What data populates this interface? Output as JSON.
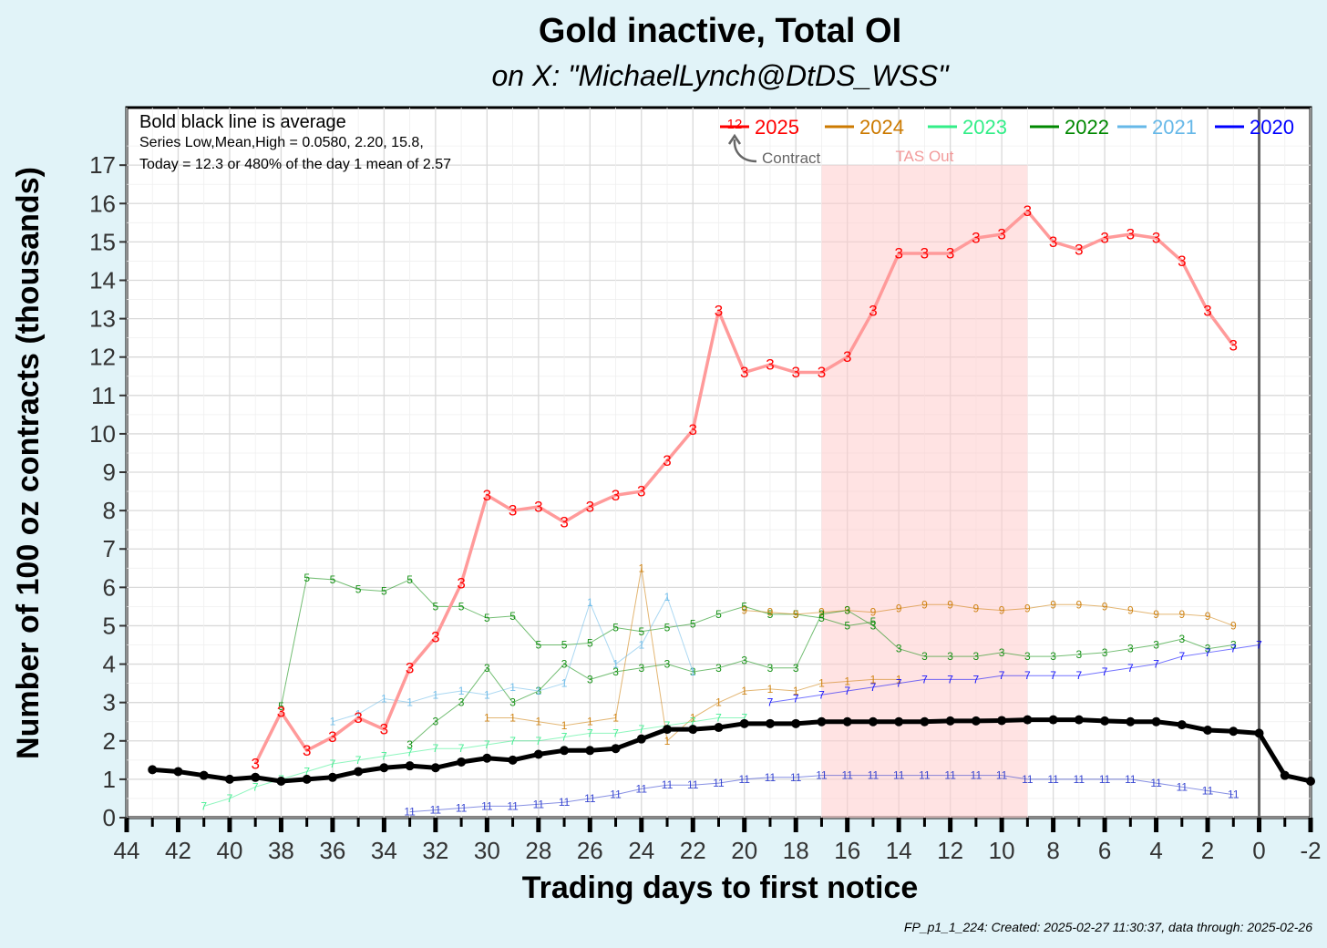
{
  "chart_data": {
    "type": "line",
    "title": "Gold inactive, Total OI",
    "subtitle": "on X:   \"MichaelLynch@DtDS_WSS\"",
    "xlabel": "Trading days to first notice",
    "ylabel": "Number of 100 oz contracts (thousands)",
    "xlim": [
      44,
      -2
    ],
    "ylim": [
      0,
      18.5
    ],
    "x_ticks": [
      44,
      42,
      40,
      38,
      36,
      34,
      32,
      30,
      28,
      26,
      24,
      22,
      20,
      18,
      16,
      14,
      12,
      10,
      8,
      6,
      4,
      2,
      0,
      -2
    ],
    "y_ticks": [
      0,
      1,
      2,
      3,
      4,
      5,
      6,
      7,
      8,
      9,
      10,
      11,
      12,
      13,
      14,
      15,
      16,
      17
    ],
    "grid": true,
    "legend_position": "top-right",
    "annotations": {
      "average_note": "Bold black line is average",
      "stats_note": "Series Low,Mean,High = 0.0580, 2.20, 15.8,",
      "today_note": "Today = 12.3 or 480% of the day 1 mean of 2.57",
      "contract_note": "Contract",
      "contract_sample_label": "12",
      "shaded_region_label": "TAS Out",
      "shaded_region": [
        17,
        9
      ],
      "vertical_line_at": 0
    },
    "legend": [
      {
        "name": "2025",
        "color": "#ff0000"
      },
      {
        "name": "2024",
        "color": "#cc7a00"
      },
      {
        "name": "2023",
        "color": "#33ee88"
      },
      {
        "name": "2022",
        "color": "#008800"
      },
      {
        "name": "2021",
        "color": "#66b8e8"
      },
      {
        "name": "2020",
        "color": "#0000ff"
      }
    ],
    "series": [
      {
        "name": "2025",
        "color": "#ff0000",
        "line_color": "#ff9a9a",
        "label": "3",
        "x": [
          39,
          38,
          37,
          36,
          35,
          34,
          33,
          32,
          31,
          30,
          29,
          28,
          27,
          26,
          25,
          24,
          23,
          22,
          21,
          20,
          19,
          18,
          17,
          16,
          15,
          14,
          13,
          12,
          11,
          10,
          9,
          8,
          7,
          6,
          5,
          4,
          3,
          2,
          1
        ],
        "values": [
          1.4,
          2.75,
          1.75,
          2.1,
          2.6,
          2.3,
          3.9,
          4.7,
          6.1,
          8.4,
          8.0,
          8.1,
          7.7,
          8.1,
          8.4,
          8.5,
          9.3,
          10.1,
          13.2,
          11.6,
          11.8,
          11.6,
          11.6,
          12.0,
          13.2,
          14.7,
          14.7,
          14.7,
          15.1,
          15.2,
          15.8,
          15.0,
          14.8,
          15.1,
          15.2,
          15.1,
          14.5,
          13.2,
          12.3
        ]
      },
      {
        "name": "average",
        "color": "#000000",
        "x": [
          43,
          42,
          41,
          40,
          39,
          38,
          37,
          36,
          35,
          34,
          33,
          32,
          31,
          30,
          29,
          28,
          27,
          26,
          25,
          24,
          23,
          22,
          21,
          20,
          19,
          18,
          17,
          16,
          15,
          14,
          13,
          12,
          11,
          10,
          9,
          8,
          7,
          6,
          5,
          4,
          3,
          2,
          1,
          0,
          -1,
          -2
        ],
        "values": [
          1.25,
          1.2,
          1.1,
          1.0,
          1.05,
          0.95,
          1.0,
          1.05,
          1.2,
          1.3,
          1.35,
          1.3,
          1.45,
          1.55,
          1.5,
          1.65,
          1.75,
          1.75,
          1.8,
          2.05,
          2.3,
          2.3,
          2.35,
          2.45,
          2.45,
          2.45,
          2.5,
          2.5,
          2.5,
          2.5,
          2.5,
          2.52,
          2.52,
          2.53,
          2.55,
          2.55,
          2.55,
          2.52,
          2.5,
          2.5,
          2.42,
          2.28,
          2.25,
          2.2,
          1.1,
          0.95
        ]
      },
      {
        "name": "5",
        "color": "#008800",
        "label": "5",
        "x": [
          38,
          37,
          36,
          35,
          34,
          33,
          32,
          31,
          30,
          29,
          28,
          27,
          26,
          25,
          24,
          23,
          22,
          21,
          20,
          19,
          18,
          17,
          16,
          15
        ],
        "values": [
          2.9,
          6.25,
          6.2,
          5.95,
          5.9,
          6.2,
          5.5,
          5.5,
          5.2,
          5.25,
          4.5,
          4.5,
          4.55,
          4.95,
          4.85,
          4.95,
          5.05,
          5.3,
          5.5,
          5.3,
          5.3,
          5.2,
          5.0,
          5.1
        ]
      },
      {
        "name": "9",
        "color": "#cc7a00",
        "label": "9",
        "x": [
          20,
          19,
          18,
          17,
          16,
          15,
          14,
          13,
          12,
          11,
          10,
          9,
          8,
          7,
          6,
          5,
          4,
          3,
          2,
          1
        ],
        "values": [
          5.4,
          5.35,
          5.3,
          5.35,
          5.4,
          5.35,
          5.45,
          5.55,
          5.55,
          5.45,
          5.4,
          5.45,
          5.55,
          5.55,
          5.5,
          5.4,
          5.3,
          5.3,
          5.25,
          5.0
        ]
      },
      {
        "name": "3",
        "color": "#008800",
        "label": "3",
        "x": [
          33,
          32,
          31,
          30,
          29,
          28,
          27,
          26,
          25,
          24,
          23,
          22,
          21,
          20,
          19,
          18,
          17,
          16,
          15,
          14,
          13,
          12,
          11,
          10,
          9,
          8,
          7,
          6,
          5,
          4,
          3,
          2,
          1
        ],
        "values": [
          1.9,
          2.5,
          3.0,
          3.9,
          3.0,
          3.3,
          4.0,
          3.6,
          3.8,
          3.9,
          4.0,
          3.8,
          3.9,
          4.1,
          3.9,
          3.9,
          5.3,
          5.4,
          5.0,
          4.4,
          4.2,
          4.2,
          4.2,
          4.3,
          4.2,
          4.2,
          4.25,
          4.3,
          4.4,
          4.5,
          4.65,
          4.4,
          4.5
        ]
      },
      {
        "name": "1",
        "color": "#cc7a00",
        "label": "1",
        "x": [
          30,
          29,
          28,
          27,
          26,
          25,
          24,
          23,
          22,
          21,
          20,
          19,
          18,
          17,
          16,
          15,
          14
        ],
        "values": [
          2.6,
          2.6,
          2.5,
          2.4,
          2.5,
          2.6,
          6.5,
          2.0,
          2.6,
          3.0,
          3.3,
          3.35,
          3.3,
          3.5,
          3.55,
          3.6,
          3.6
        ]
      },
      {
        "name": "7",
        "color": "#0000ff",
        "label": "7",
        "x": [
          19,
          18,
          17,
          16,
          15,
          14,
          13,
          12,
          11,
          10,
          9,
          8,
          7,
          6,
          5,
          4,
          3,
          2,
          1,
          0
        ],
        "values": [
          3.0,
          3.1,
          3.2,
          3.3,
          3.4,
          3.5,
          3.6,
          3.6,
          3.6,
          3.7,
          3.7,
          3.7,
          3.7,
          3.8,
          3.9,
          4.0,
          4.2,
          4.3,
          4.4,
          4.5
        ]
      },
      {
        "name": "11",
        "color": "#2233cc",
        "label": "11",
        "x": [
          33,
          32,
          31,
          30,
          29,
          28,
          27,
          26,
          25,
          24,
          23,
          22,
          21,
          20,
          19,
          18,
          17,
          16,
          15,
          14,
          13,
          12,
          11,
          10,
          9,
          8,
          7,
          6,
          5,
          4,
          3,
          2,
          1
        ],
        "values": [
          0.15,
          0.2,
          0.25,
          0.3,
          0.3,
          0.35,
          0.4,
          0.5,
          0.6,
          0.75,
          0.85,
          0.85,
          0.9,
          1.0,
          1.05,
          1.05,
          1.1,
          1.1,
          1.1,
          1.1,
          1.1,
          1.1,
          1.1,
          1.1,
          1.0,
          1.0,
          1.0,
          1.0,
          1.0,
          0.9,
          0.8,
          0.7,
          0.6
        ]
      },
      {
        "name": "1b",
        "color": "#66b8e8",
        "label": "1",
        "x": [
          36,
          35,
          34,
          33,
          32,
          31,
          30,
          29,
          28,
          27,
          26,
          25,
          24,
          23,
          22
        ],
        "values": [
          2.5,
          2.7,
          3.1,
          3.0,
          3.2,
          3.3,
          3.2,
          3.4,
          3.3,
          3.5,
          5.6,
          4.0,
          4.5,
          5.75,
          3.8
        ]
      },
      {
        "name": "7b",
        "color": "#33ee88",
        "label": "7",
        "x": [
          41,
          40,
          39,
          38,
          37,
          36,
          35,
          34,
          33,
          32,
          31,
          30,
          29,
          28,
          27,
          26,
          25,
          24,
          23,
          22,
          21,
          20
        ],
        "values": [
          0.3,
          0.5,
          0.8,
          1.0,
          1.2,
          1.4,
          1.5,
          1.6,
          1.7,
          1.8,
          1.8,
          1.9,
          2.0,
          2.0,
          2.1,
          2.2,
          2.2,
          2.3,
          2.4,
          2.5,
          2.6,
          2.6
        ]
      }
    ]
  },
  "caption": "FP_p1_1_224: Created: 2025-02-27 11:30:37, data through: 2025-02-26"
}
